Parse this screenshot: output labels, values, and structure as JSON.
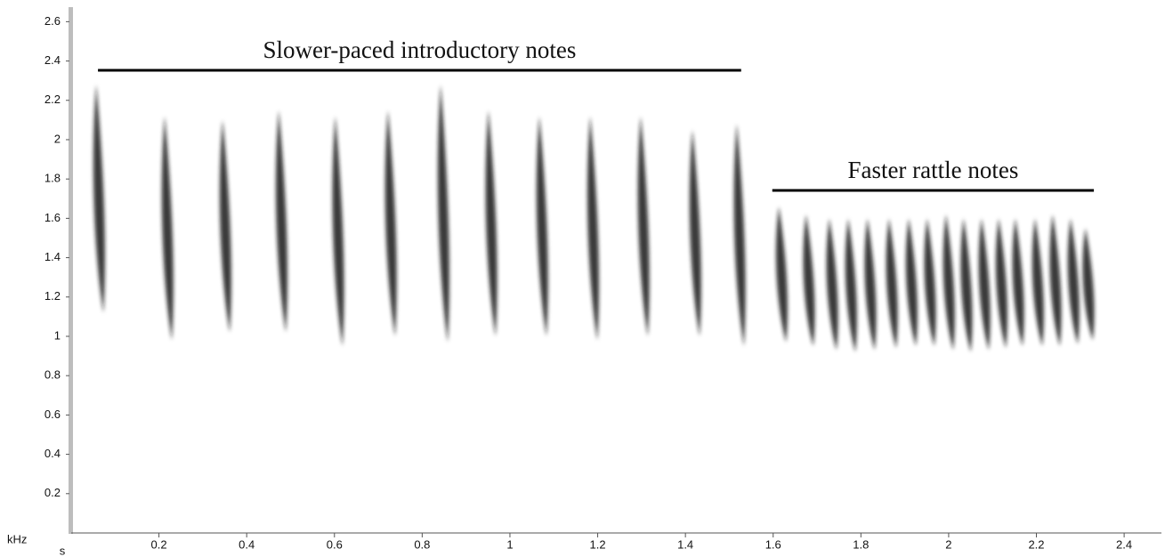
{
  "chart_data": {
    "type": "spectrogram",
    "x_label": "s",
    "y_label": "kHz",
    "xlim": [
      0,
      2.485
    ],
    "ylim": [
      0,
      2.665
    ],
    "xticks": [
      0.2,
      0.4,
      0.6,
      0.8,
      1,
      1.2,
      1.4,
      1.6,
      1.8,
      2,
      2.2,
      2.4
    ],
    "yticks": [
      0.2,
      0.4,
      0.6,
      0.8,
      1,
      1.2,
      1.4,
      1.6,
      1.8,
      2,
      2.2,
      2.4,
      2.6
    ],
    "color": "#1a1a1a",
    "notes": {
      "x": [
        0.057,
        0.213,
        0.345,
        0.473,
        0.602,
        0.722,
        0.842,
        0.951,
        1.067,
        1.183,
        1.298,
        1.416,
        1.517,
        1.613,
        1.675,
        1.728,
        1.771,
        1.815,
        1.864,
        1.909,
        1.951,
        1.994,
        2.034,
        2.075,
        2.114,
        2.152,
        2.197,
        2.237,
        2.278,
        2.312
      ],
      "high": [
        2.28,
        2.12,
        2.1,
        2.15,
        2.12,
        2.15,
        2.28,
        2.15,
        2.12,
        2.12,
        2.12,
        2.05,
        2.08,
        1.66,
        1.62,
        1.6,
        1.6,
        1.6,
        1.6,
        1.6,
        1.6,
        1.62,
        1.6,
        1.6,
        1.6,
        1.6,
        1.6,
        1.62,
        1.6,
        1.55
      ],
      "low": [
        1.12,
        0.98,
        1.02,
        1.02,
        0.95,
        1.0,
        0.97,
        1.0,
        1.0,
        0.98,
        1.0,
        1.0,
        0.95,
        0.97,
        0.95,
        0.93,
        0.92,
        0.93,
        0.94,
        0.95,
        0.95,
        0.93,
        0.92,
        0.93,
        0.94,
        0.95,
        0.95,
        0.95,
        0.96,
        0.98
      ]
    },
    "annotations": [
      {
        "text": "Slower-paced introductory notes",
        "x": [
          0.061,
          1.527
        ],
        "y": 2.353
      },
      {
        "text": "Faster rattle notes",
        "x": [
          1.598,
          2.331
        ],
        "y": 1.742
      }
    ]
  }
}
